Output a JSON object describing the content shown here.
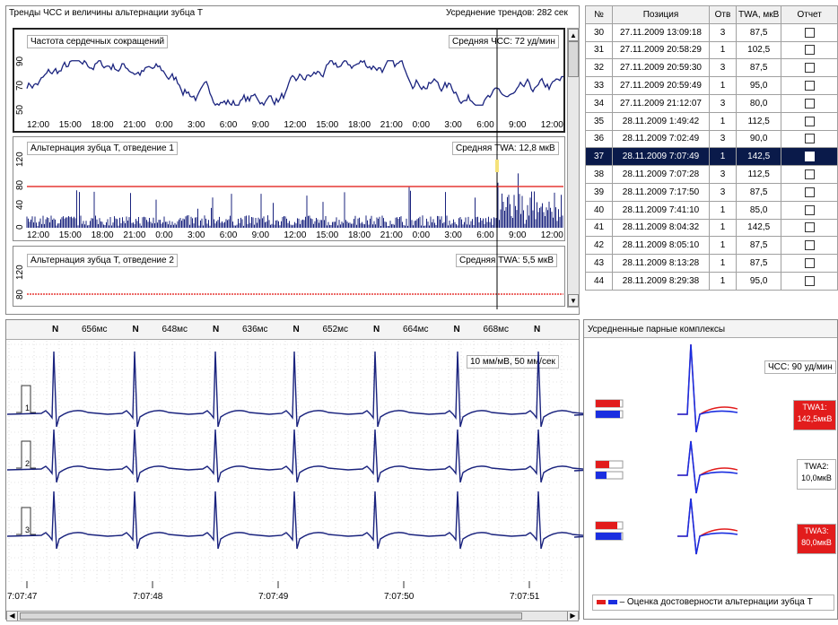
{
  "trends": {
    "title": "Тренды ЧСС и величины альтернации зубца T",
    "averaging": "Усреднение трендов: 282 сек",
    "hr": {
      "title": "Частота сердечных сокращений",
      "avg": "Средняя ЧСС: 72 уд/мин",
      "yticks": [
        "50",
        "70",
        "90"
      ]
    },
    "twa1": {
      "title": "Альтернация зубца T, отведение 1",
      "avg": "Средняя TWA: 12,8 мкВ",
      "yticks": [
        "120",
        "80",
        "40",
        "0"
      ]
    },
    "twa2": {
      "title": "Альтернация зубца T, отведение 2",
      "avg": "Средняя TWA: 5,5 мкВ",
      "yticks": [
        "120",
        "80"
      ]
    },
    "time_ticks": [
      "12:00",
      "15:00",
      "18:00",
      "21:00",
      "0:00",
      "3:00",
      "6:00",
      "9:00",
      "12:00",
      "15:00",
      "18:00",
      "21:00",
      "0:00",
      "3:00",
      "6:00",
      "9:00",
      "12:00"
    ]
  },
  "events": {
    "columns": [
      "№",
      "Позиция",
      "Отв",
      "TWA, мкВ",
      "Отчет"
    ],
    "rows": [
      {
        "n": "30",
        "pos": "27.11.2009 13:09:18",
        "lead": "3",
        "twa": "87,5"
      },
      {
        "n": "31",
        "pos": "27.11.2009 20:58:29",
        "lead": "1",
        "twa": "102,5"
      },
      {
        "n": "32",
        "pos": "27.11.2009 20:59:30",
        "lead": "3",
        "twa": "87,5"
      },
      {
        "n": "33",
        "pos": "27.11.2009 20:59:49",
        "lead": "1",
        "twa": "95,0"
      },
      {
        "n": "34",
        "pos": "27.11.2009 21:12:07",
        "lead": "3",
        "twa": "80,0"
      },
      {
        "n": "35",
        "pos": "28.11.2009 1:49:42",
        "lead": "1",
        "twa": "112,5"
      },
      {
        "n": "36",
        "pos": "28.11.2009 7:02:49",
        "lead": "3",
        "twa": "90,0"
      },
      {
        "n": "37",
        "pos": "28.11.2009 7:07:49",
        "lead": "1",
        "twa": "142,5",
        "selected": true
      },
      {
        "n": "38",
        "pos": "28.11.2009 7:07:28",
        "lead": "3",
        "twa": "112,5"
      },
      {
        "n": "39",
        "pos": "28.11.2009 7:17:50",
        "lead": "3",
        "twa": "87,5"
      },
      {
        "n": "40",
        "pos": "28.11.2009 7:41:10",
        "lead": "1",
        "twa": "85,0"
      },
      {
        "n": "41",
        "pos": "28.11.2009 8:04:32",
        "lead": "1",
        "twa": "142,5"
      },
      {
        "n": "42",
        "pos": "28.11.2009 8:05:10",
        "lead": "1",
        "twa": "87,5"
      },
      {
        "n": "43",
        "pos": "28.11.2009 8:13:28",
        "lead": "1",
        "twa": "87,5"
      },
      {
        "n": "44",
        "pos": "28.11.2009 8:29:38",
        "lead": "1",
        "twa": "95,0"
      }
    ]
  },
  "ecg": {
    "beats": [
      {
        "label": "N",
        "rr": "656мс"
      },
      {
        "label": "N",
        "rr": "648мс"
      },
      {
        "label": "N",
        "rr": "636мс"
      },
      {
        "label": "N",
        "rr": "652мс"
      },
      {
        "label": "N",
        "rr": "664мс"
      },
      {
        "label": "N",
        "rr": "668мс"
      },
      {
        "label": "N",
        "rr": ""
      }
    ],
    "scale": "10 мм/мВ, 50 мм/сек",
    "leads": [
      "1",
      "2",
      "3"
    ],
    "time_ticks": [
      "7:07:47",
      "7:07:48",
      "7:07:49",
      "7:07:50",
      "7:07:51"
    ]
  },
  "complexes": {
    "title": "Усредненные парные комплексы",
    "hr": "ЧСС: 90 уд/мин",
    "twa": [
      {
        "label": "TWA1:",
        "value": "142,5мкВ",
        "alert": true
      },
      {
        "label": "TWA2:",
        "value": "10,0мкВ",
        "alert": false
      },
      {
        "label": "TWA3:",
        "value": "80,0мкВ",
        "alert": true
      }
    ],
    "legend": "– Оценка достоверности альтернации зубца T"
  },
  "colors": {
    "trace": "#1a237e",
    "threshold": "#e53935",
    "selected_row": "#0a1a4a",
    "alert": "#e21c1c"
  }
}
